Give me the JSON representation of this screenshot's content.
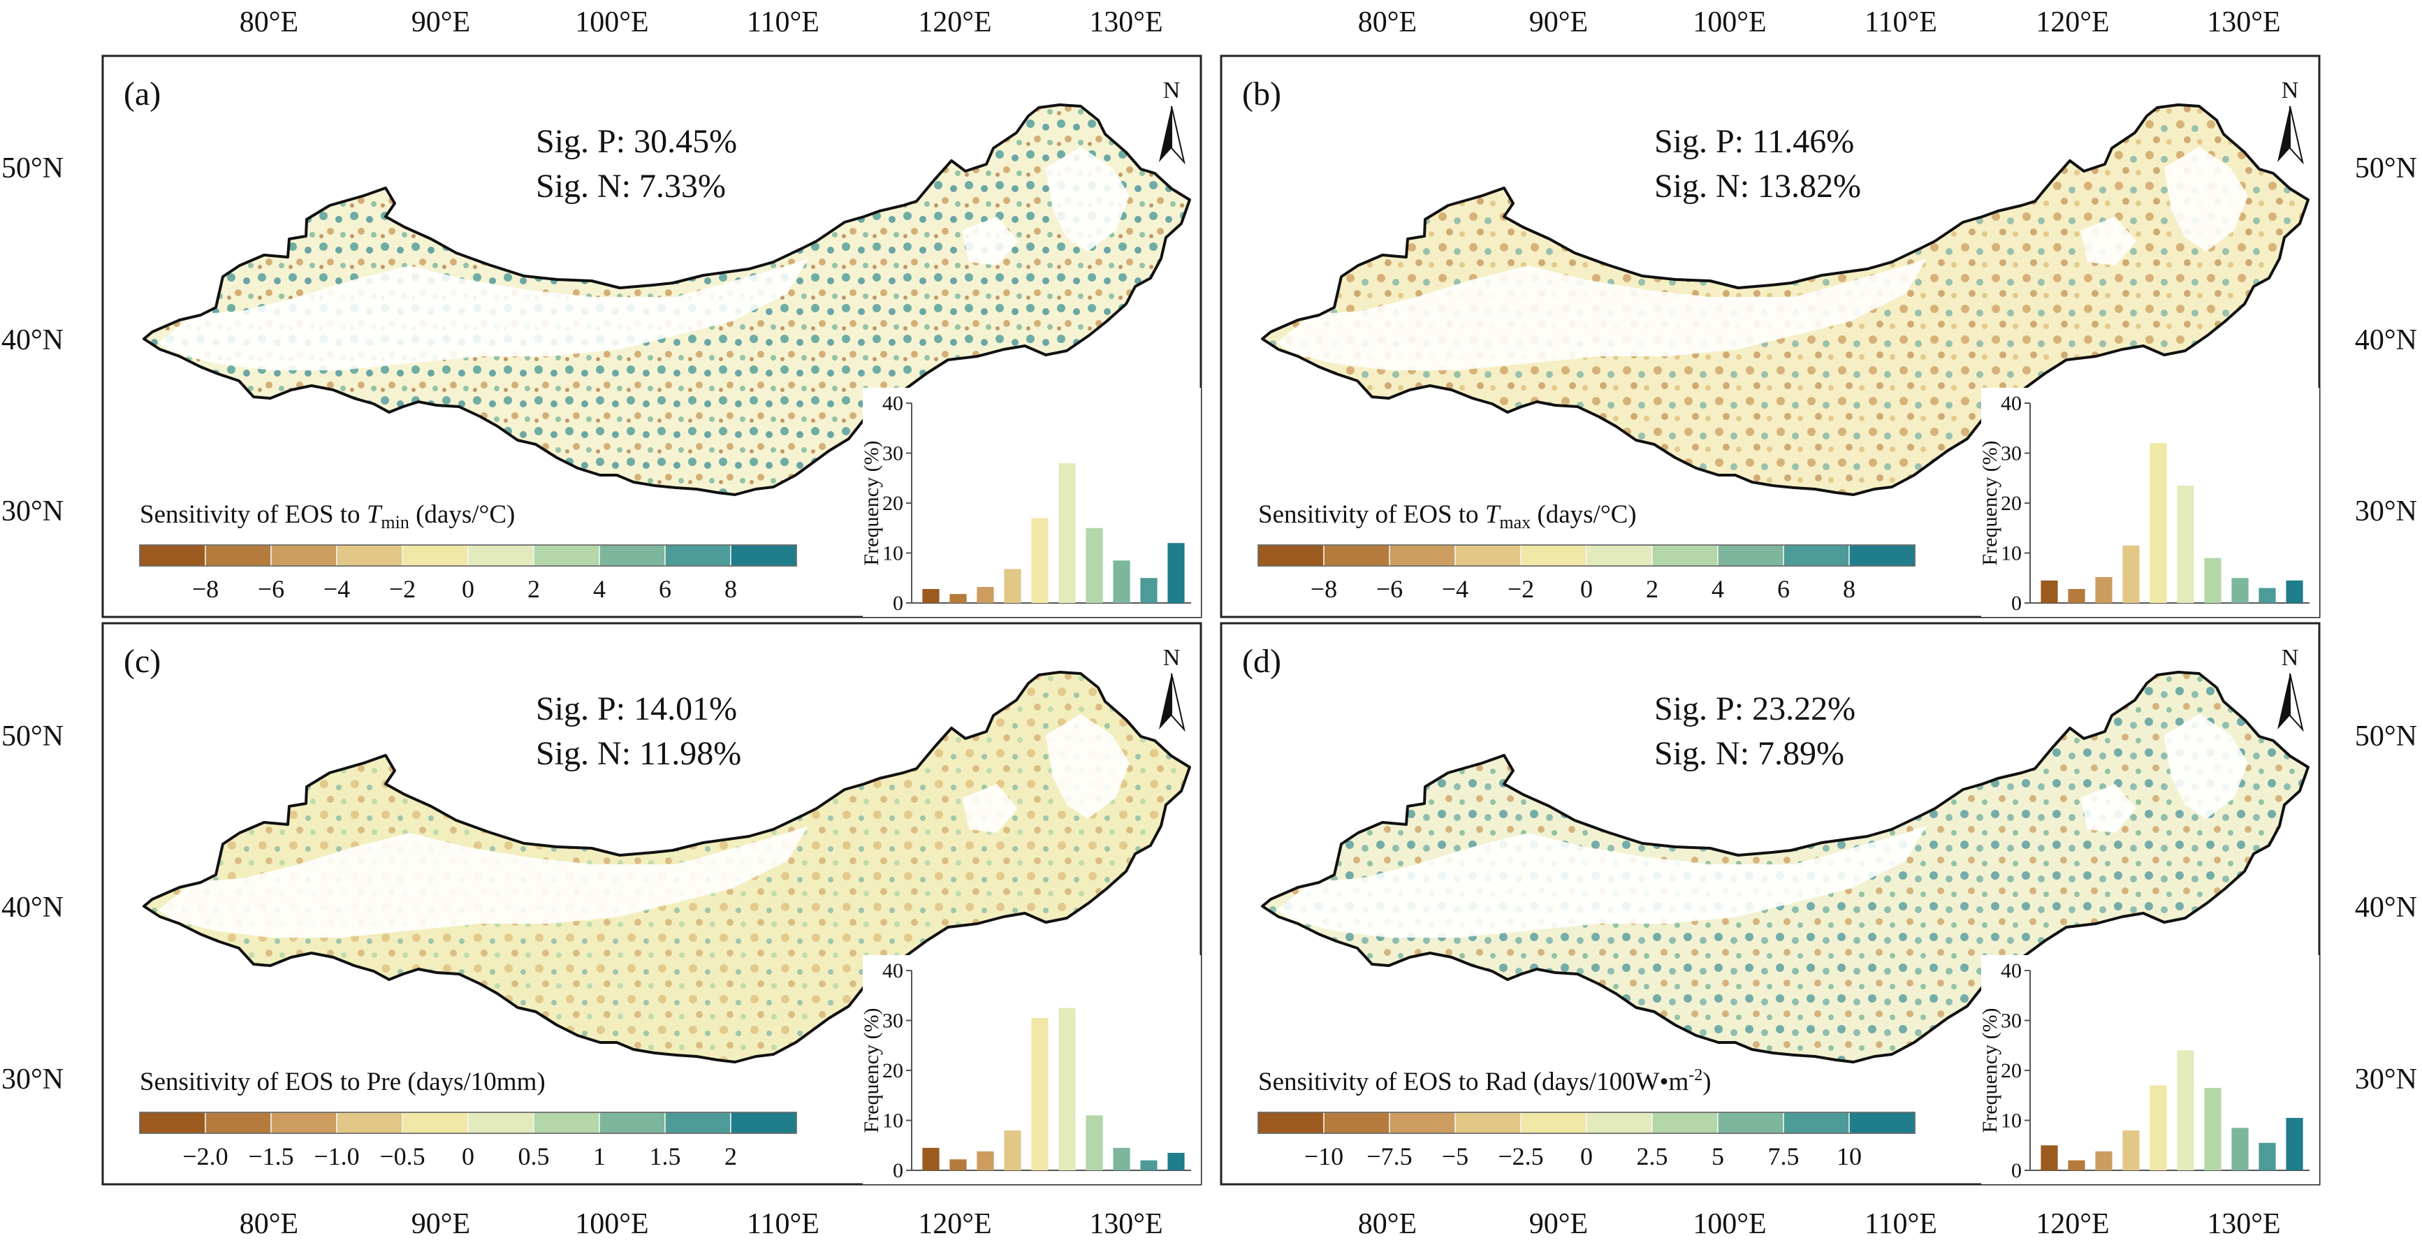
{
  "figure": {
    "top_lon_labels": [
      "80°E",
      "90°E",
      "100°E",
      "110°E",
      "120°E",
      "130°E"
    ],
    "bottom_lon_labels": [
      "80°E",
      "90°E",
      "100°E",
      "110°E",
      "120°E",
      "130°E"
    ],
    "left_lat_labels_top": [
      "50°N",
      "40°N",
      "30°N"
    ],
    "left_lat_labels_bottom": [
      "50°N",
      "40°N",
      "30°N"
    ],
    "right_lat_labels_top": [
      "50°N",
      "40°N",
      "30°N"
    ],
    "right_lat_labels_bottom": [
      "50°N",
      "40°N",
      "30°N"
    ],
    "colors": {
      "bins": [
        "#9b5a1e",
        "#b57b3c",
        "#cc9d5e",
        "#e2c786",
        "#f1e7a6",
        "#e3eabb",
        "#b3d7a8",
        "#7cb69c",
        "#4c9b98",
        "#1f7d8c"
      ],
      "outline": "#111111",
      "frame": "#222222"
    }
  },
  "panels": [
    {
      "label": "(a)",
      "north": "N",
      "sig_p": "Sig. P: 30.45%",
      "sig_n": "Sig. N: 7.33%",
      "legend_title_pre": "Sensitivity of EOS to ",
      "legend_var": "T",
      "legend_sub": "min",
      "legend_title_post": " (days/°C)",
      "legend_sup": "",
      "legend_tail": "",
      "ticks": [
        "−8",
        "−6",
        "−4",
        "−2",
        "0",
        "2",
        "4",
        "6",
        "8"
      ],
      "hist_ylabel": "Frequency (%)",
      "hist_yticks": [
        "0",
        "10",
        "20",
        "30",
        "40"
      ],
      "hist_ymax": 40,
      "hist": [
        2.8,
        1.8,
        3.2,
        6.8,
        17,
        28,
        15,
        8.5,
        5,
        12
      ]
    },
    {
      "label": "(b)",
      "north": "N",
      "sig_p": "Sig. P: 11.46%",
      "sig_n": "Sig. N: 13.82%",
      "legend_title_pre": "Sensitivity of EOS to ",
      "legend_var": "T",
      "legend_sub": "max",
      "legend_title_post": " (days/°C)",
      "legend_sup": "",
      "legend_tail": "",
      "ticks": [
        "−8",
        "−6",
        "−4",
        "−2",
        "0",
        "2",
        "4",
        "6",
        "8"
      ],
      "hist_ylabel": "Frequency (%)",
      "hist_yticks": [
        "0",
        "10",
        "20",
        "30",
        "40"
      ],
      "hist_ymax": 40,
      "hist": [
        4.5,
        2.8,
        5.2,
        11.5,
        32,
        23.5,
        9,
        5,
        3,
        4.5
      ]
    },
    {
      "label": "(c)",
      "north": "N",
      "sig_p": "Sig. P: 14.01%",
      "sig_n": "Sig. N: 11.98%",
      "legend_title_pre": "Sensitivity of EOS to Pre (days/10mm)",
      "legend_var": "",
      "legend_sub": "",
      "legend_title_post": "",
      "legend_sup": "",
      "legend_tail": "",
      "ticks": [
        "−2.0",
        "−1.5",
        "−1.0",
        "−0.5",
        "0",
        "0.5",
        "1",
        "1.5",
        "2"
      ],
      "hist_ylabel": "Frequency (%)",
      "hist_yticks": [
        "0",
        "10",
        "20",
        "30",
        "40"
      ],
      "hist_ymax": 40,
      "hist": [
        4.5,
        2.2,
        3.8,
        8,
        30.5,
        32.5,
        11,
        4.5,
        2,
        3.5
      ]
    },
    {
      "label": "(d)",
      "north": "N",
      "sig_p": "Sig. P: 23.22%",
      "sig_n": "Sig. N: 7.89%",
      "legend_title_pre": "Sensitivity of EOS to Rad (days/100W•m",
      "legend_var": "",
      "legend_sub": "",
      "legend_title_post": "",
      "legend_sup": "-2",
      "legend_tail": ")",
      "ticks": [
        "−10",
        "−7.5",
        "−5",
        "−2.5",
        "0",
        "2.5",
        "5",
        "7.5",
        "10"
      ],
      "hist_ylabel": "Frequency (%)",
      "hist_yticks": [
        "0",
        "10",
        "20",
        "30",
        "40"
      ],
      "hist_ymax": 40,
      "hist": [
        5,
        2,
        3.8,
        8,
        17,
        24,
        16.5,
        8.5,
        5.5,
        10.5
      ]
    }
  ]
}
